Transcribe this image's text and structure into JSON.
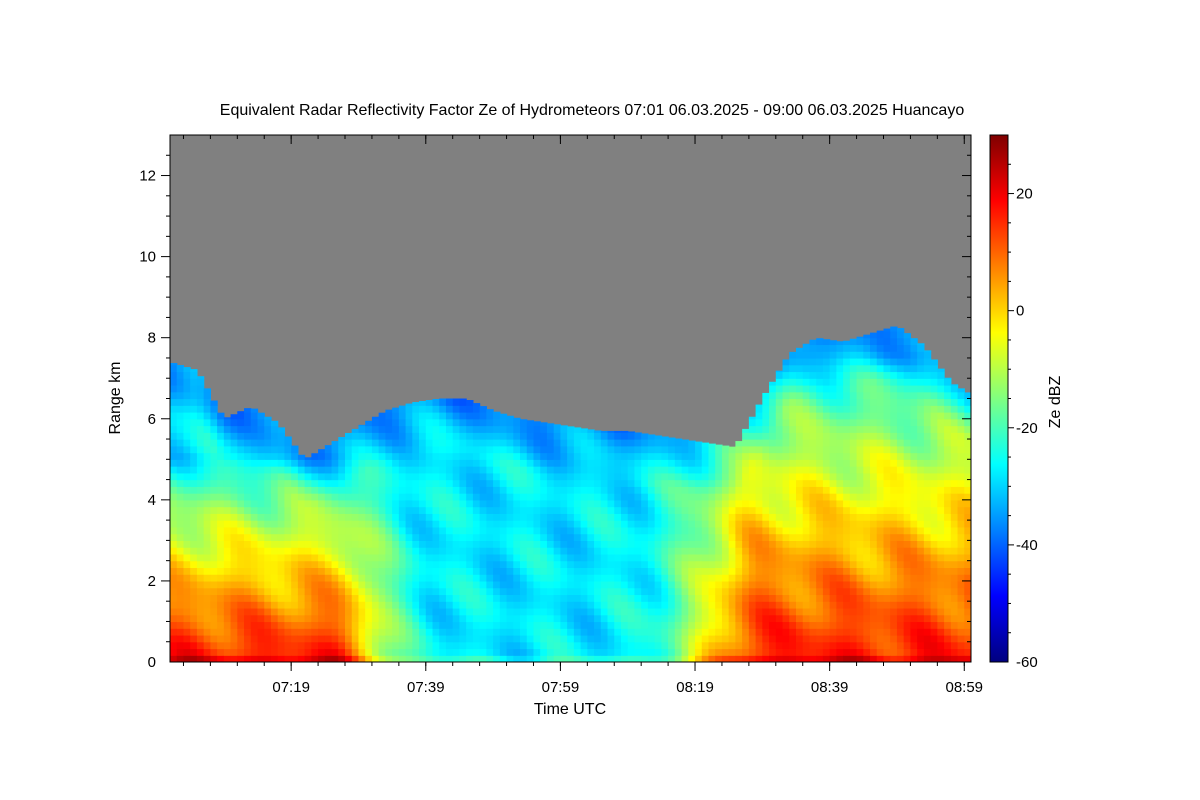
{
  "chart_data": {
    "type": "heatmap",
    "title": "Equivalent Radar Reflectivity Factor Ze of Hydrometeors   07:01 06.03.2025 - 09:00 06.03.2025 Huancayo",
    "xlabel": "Time UTC",
    "ylabel": "Range km",
    "colorbar_label": "Ze dBZ",
    "x_ticks": [
      "07:19",
      "07:39",
      "07:59",
      "08:19",
      "08:39",
      "08:59"
    ],
    "x_tick_minutes": [
      18,
      38,
      58,
      78,
      98,
      118
    ],
    "xlim_minutes": [
      0,
      119
    ],
    "y_ticks": [
      0,
      2,
      4,
      6,
      8,
      10,
      12
    ],
    "ylim": [
      0,
      13
    ],
    "colorbar_ticks": [
      20,
      0,
      -20,
      -40,
      -60
    ],
    "colorbar_range": [
      -60,
      30
    ],
    "no_data_color": "#808080",
    "colormap": [
      "#00007f",
      "#0000ff",
      "#0080ff",
      "#00ffff",
      "#80ff80",
      "#ffff00",
      "#ff8000",
      "#ff0000",
      "#7f0000"
    ],
    "echo_top_km": [
      [
        0,
        7.4
      ],
      [
        4,
        7.2
      ],
      [
        8,
        6.0
      ],
      [
        12,
        6.3
      ],
      [
        16,
        5.9
      ],
      [
        20,
        5.0
      ],
      [
        24,
        5.4
      ],
      [
        28,
        5.8
      ],
      [
        32,
        6.2
      ],
      [
        36,
        6.4
      ],
      [
        40,
        6.5
      ],
      [
        44,
        6.5
      ],
      [
        48,
        6.2
      ],
      [
        52,
        6.0
      ],
      [
        56,
        5.9
      ],
      [
        60,
        5.8
      ],
      [
        64,
        5.7
      ],
      [
        68,
        5.7
      ],
      [
        72,
        5.6
      ],
      [
        76,
        5.5
      ],
      [
        80,
        5.4
      ],
      [
        84,
        5.3
      ],
      [
        88,
        6.5
      ],
      [
        92,
        7.6
      ],
      [
        96,
        8.0
      ],
      [
        100,
        7.9
      ],
      [
        104,
        8.1
      ],
      [
        108,
        8.3
      ],
      [
        112,
        7.8
      ],
      [
        116,
        6.9
      ],
      [
        119,
        6.6
      ]
    ],
    "echo_cores": [
      {
        "x_min": [
          0,
          24
        ],
        "top_km": 5.0,
        "peak_dbz": 20
      },
      {
        "x_min": [
          88,
          119
        ],
        "top_km": 7.5,
        "peak_dbz": 20
      }
    ]
  }
}
